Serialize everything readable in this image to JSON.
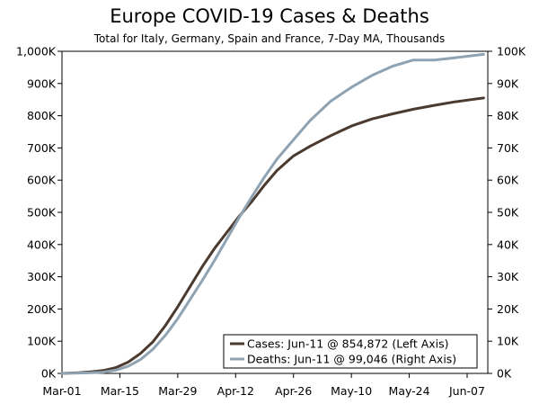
{
  "chart_data": {
    "type": "line",
    "title": "Europe COVID-19 Cases & Deaths",
    "subtitle": "Total for Italy, Germany, Spain and France, 7-Day MA, Thousands",
    "x_ticks": [
      "Mar-01",
      "Mar-15",
      "Mar-29",
      "Apr-12",
      "Apr-26",
      "May-10",
      "May-24",
      "Jun-07"
    ],
    "x_range_days": [
      0,
      103
    ],
    "y_left": {
      "ticks": [
        "0K",
        "100K",
        "200K",
        "300K",
        "400K",
        "500K",
        "600K",
        "700K",
        "800K",
        "900K",
        "1,000K"
      ],
      "ylim": [
        0,
        1000
      ]
    },
    "y_right": {
      "ticks": [
        "0K",
        "10K",
        "20K",
        "30K",
        "40K",
        "50K",
        "60K",
        "70K",
        "80K",
        "90K",
        "100K"
      ],
      "ylim": [
        0,
        100
      ]
    },
    "grid": false,
    "legend_position": "bottom-right",
    "series": [
      {
        "name": "Cases: Jun-11 @ 854,872 (Left Axis)",
        "axis": "left",
        "color": "#4b3a2f",
        "x": [
          "Mar-01",
          "Mar-05",
          "Mar-08",
          "Mar-11",
          "Mar-14",
          "Mar-17",
          "Mar-20",
          "Mar-23",
          "Mar-26",
          "Mar-29",
          "Apr-01",
          "Apr-04",
          "Apr-07",
          "Apr-10",
          "Apr-13",
          "Apr-16",
          "Apr-19",
          "Apr-22",
          "Apr-26",
          "Apr-30",
          "May-05",
          "May-10",
          "May-15",
          "May-20",
          "May-25",
          "May-30",
          "Jun-04",
          "Jun-08",
          "Jun-11"
        ],
        "y": [
          0,
          2,
          5,
          9,
          18,
          35,
          62,
          98,
          148,
          207,
          270,
          333,
          390,
          440,
          490,
          535,
          585,
          630,
          675,
          705,
          738,
          768,
          790,
          806,
          820,
          832,
          843,
          850,
          854.9
        ]
      },
      {
        "name": "Deaths: Jun-11 @ 99,046 (Right Axis)",
        "axis": "right",
        "color": "#8fa3b3",
        "x": [
          "Mar-01",
          "Mar-05",
          "Mar-08",
          "Mar-11",
          "Mar-14",
          "Mar-17",
          "Mar-20",
          "Mar-23",
          "Mar-26",
          "Mar-29",
          "Apr-01",
          "Apr-04",
          "Apr-07",
          "Apr-10",
          "Apr-13",
          "Apr-16",
          "Apr-19",
          "Apr-22",
          "Apr-26",
          "Apr-30",
          "May-05",
          "May-10",
          "May-15",
          "May-20",
          "May-25",
          "May-30",
          "Jun-04",
          "Jun-08",
          "Jun-11"
        ],
        "y": [
          0,
          0.1,
          0.2,
          0.4,
          1.0,
          2.2,
          4.3,
          7.5,
          11.8,
          17.0,
          23.0,
          29.0,
          35.3,
          42.0,
          48.7,
          55.0,
          61.0,
          66.5,
          72.5,
          78.5,
          84.5,
          88.8,
          92.5,
          95.4,
          97.3,
          97.3,
          98.0,
          98.6,
          99.05
        ]
      }
    ]
  }
}
